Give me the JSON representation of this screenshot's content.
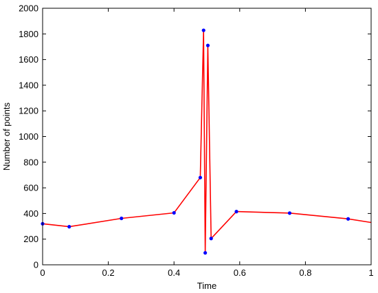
{
  "chart_data": {
    "type": "line",
    "xlabel": "Time",
    "ylabel": "Number of points",
    "xlim": [
      0,
      1
    ],
    "ylim": [
      0,
      2000
    ],
    "x_ticks": [
      0,
      0.2,
      0.4,
      0.6,
      0.8,
      1
    ],
    "x_tick_labels": [
      "0",
      "0.2",
      "0.4",
      "0.6",
      "0.8",
      "1"
    ],
    "y_ticks": [
      0,
      200,
      400,
      600,
      800,
      1000,
      1200,
      1400,
      1600,
      1800,
      2000
    ],
    "y_tick_labels": [
      "0",
      "200",
      "400",
      "600",
      "800",
      "1000",
      "1200",
      "1400",
      "1600",
      "1800",
      "2000"
    ],
    "grid": false,
    "line_color": "#ff0000",
    "marker_color": "#0000ff",
    "series": [
      {
        "x": [
          0.0,
          0.081,
          0.24,
          0.4,
          0.48,
          0.49,
          0.495,
          0.503,
          0.513,
          0.59,
          0.752,
          0.93,
          1.0
        ],
        "y": [
          320,
          297,
          362,
          405,
          680,
          1828,
          93,
          1710,
          205,
          415,
          403,
          358,
          330
        ]
      }
    ],
    "markers_x": [
      0.0,
      0.081,
      0.24,
      0.4,
      0.48,
      0.49,
      0.495,
      0.503,
      0.513,
      0.59,
      0.752,
      0.93
    ],
    "markers_y": [
      320,
      297,
      362,
      405,
      680,
      1828,
      93,
      1710,
      205,
      415,
      403,
      358
    ]
  }
}
